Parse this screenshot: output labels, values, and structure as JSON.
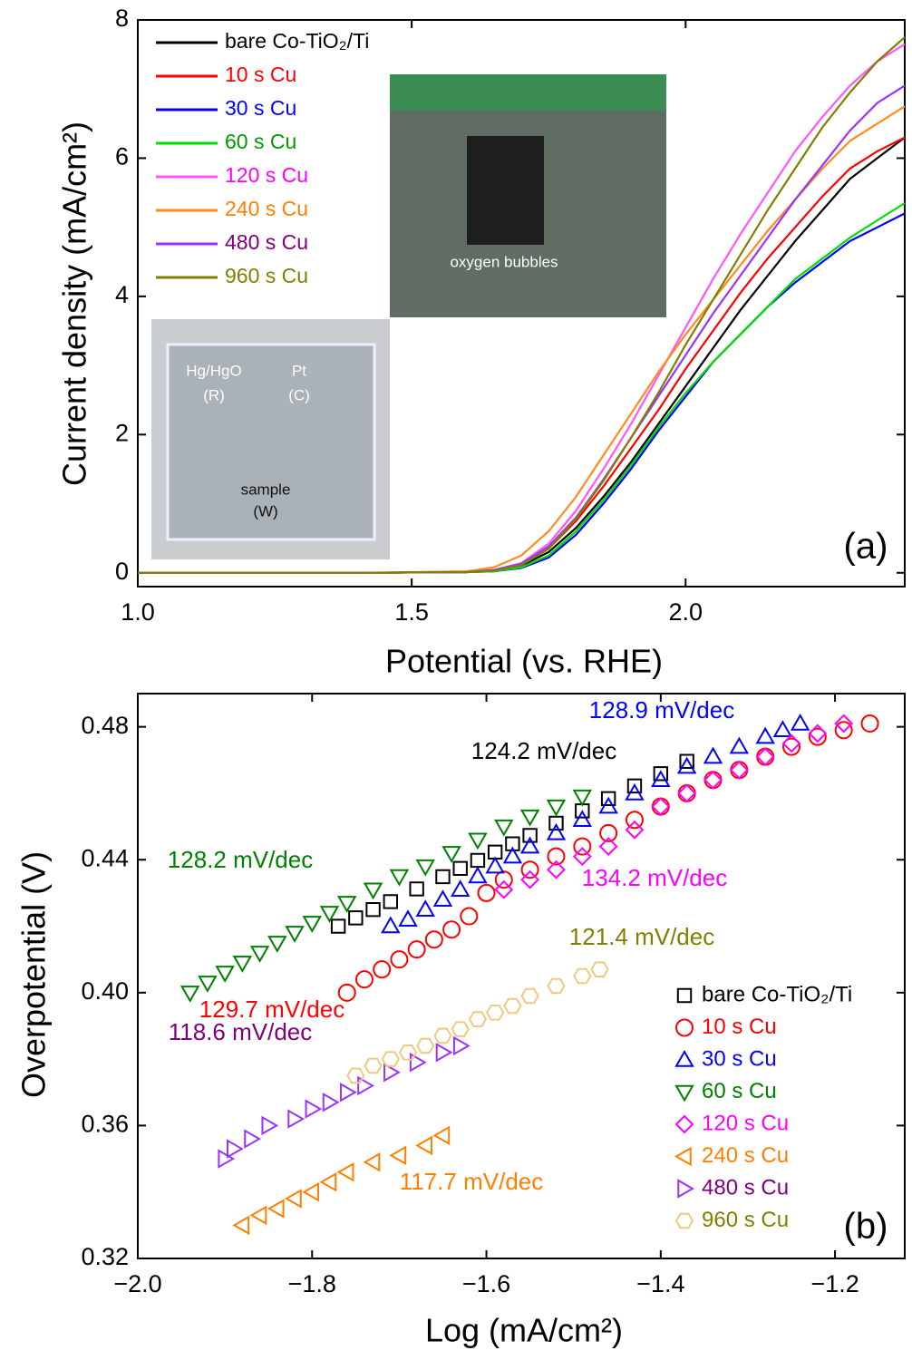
{
  "chart_data": [
    {
      "type": "line",
      "x_label": "Potential (vs. RHE)",
      "y_label": "Current density (mA/cm²)",
      "annotation": "(a)",
      "inset_labels": [
        "oxygen bubbles",
        "Hg/HgO",
        "(R)",
        "Pt",
        "(C)",
        "sample",
        "(W)"
      ],
      "xlim": [
        1.0,
        2.4
      ],
      "ylim": [
        -0.2,
        8.0
      ],
      "xticks": [
        {
          "value": 1,
          "label": "1.0"
        },
        1.5,
        {
          "value": 2,
          "label": "2.0"
        }
      ],
      "yticks": [
        0,
        2,
        4,
        6,
        8
      ],
      "legend": "upper left",
      "x": [
        1.0,
        1.2,
        1.4,
        1.6,
        1.65,
        1.7,
        1.75,
        1.8,
        1.85,
        1.9,
        1.95,
        2.0,
        2.05,
        2.1,
        2.15,
        2.2,
        2.25,
        2.3,
        2.35,
        2.4
      ],
      "series": [
        {
          "name": "bare Co-TiO₂/Ti",
          "color": "#000000",
          "label_color": "#000000",
          "values": [
            0,
            0,
            0,
            0.01,
            0.03,
            0.1,
            0.3,
            0.65,
            1.1,
            1.6,
            2.15,
            2.7,
            3.25,
            3.8,
            4.3,
            4.8,
            5.25,
            5.7,
            6.0,
            6.3
          ]
        },
        {
          "name": "10 s Cu",
          "color": "#ff0000",
          "label_color": "#ff0000",
          "values": [
            0,
            0,
            0,
            0.01,
            0.04,
            0.12,
            0.35,
            0.75,
            1.25,
            1.8,
            2.35,
            2.95,
            3.5,
            4.05,
            4.55,
            5.0,
            5.45,
            5.85,
            6.1,
            6.3
          ]
        },
        {
          "name": "30 s Cu",
          "color": "#0000ff",
          "label_color": "#0000ff",
          "values": [
            0,
            0,
            0,
            0.01,
            0.02,
            0.07,
            0.22,
            0.55,
            1.0,
            1.5,
            2.05,
            2.55,
            3.05,
            3.45,
            3.85,
            4.2,
            4.5,
            4.8,
            5.0,
            5.2
          ]
        },
        {
          "name": "60 s Cu",
          "color": "#00dd00",
          "label_color": "#009900",
          "values": [
            0,
            0,
            0,
            0.01,
            0.02,
            0.08,
            0.25,
            0.6,
            1.05,
            1.55,
            2.1,
            2.6,
            3.05,
            3.45,
            3.85,
            4.25,
            4.55,
            4.85,
            5.1,
            5.35
          ]
        },
        {
          "name": "120 s Cu",
          "color": "#ff55ff",
          "label_color": "#ff00ff",
          "values": [
            0,
            0,
            0,
            0.01,
            0.04,
            0.14,
            0.42,
            0.9,
            1.5,
            2.15,
            2.85,
            3.55,
            4.25,
            4.9,
            5.5,
            6.1,
            6.6,
            7.05,
            7.4,
            7.65
          ]
        },
        {
          "name": "240 s Cu",
          "color": "#ff8c1a",
          "label_color": "#ff8000",
          "values": [
            0,
            0,
            0,
            0.02,
            0.08,
            0.25,
            0.6,
            1.1,
            1.7,
            2.3,
            2.9,
            3.45,
            3.95,
            4.45,
            4.95,
            5.4,
            5.85,
            6.25,
            6.5,
            6.75
          ]
        },
        {
          "name": "480 s Cu",
          "color": "#9933ff",
          "label_color": "#800080",
          "values": [
            0,
            0,
            0,
            0.01,
            0.04,
            0.13,
            0.38,
            0.8,
            1.35,
            1.95,
            2.55,
            3.15,
            3.75,
            4.3,
            4.85,
            5.4,
            5.9,
            6.4,
            6.8,
            7.05
          ]
        },
        {
          "name": "960 s Cu",
          "color": "#808000",
          "label_color": "#808000",
          "values": [
            0,
            0,
            0,
            0.01,
            0.03,
            0.11,
            0.35,
            0.78,
            1.33,
            1.95,
            2.6,
            3.3,
            3.95,
            4.6,
            5.25,
            5.85,
            6.45,
            6.95,
            7.4,
            7.75
          ]
        }
      ]
    },
    {
      "type": "scatter",
      "x_label": "Log  (mA/cm²)",
      "y_label": "Overpotential (V)",
      "annotation": "(b)",
      "xlim": [
        -2.0,
        -1.12
      ],
      "ylim": [
        0.32,
        0.49
      ],
      "xticks": [
        {
          "value": -2.0,
          "label": "−2.0"
        },
        {
          "value": -1.8,
          "label": "−1.8"
        },
        {
          "value": -1.6,
          "label": "−1.6"
        },
        {
          "value": -1.4,
          "label": "−1.4"
        },
        {
          "value": -1.2,
          "label": "−1.2"
        }
      ],
      "yticks": [
        0.32,
        0.36,
        {
          "value": 0.4,
          "label": "0.40"
        },
        0.44,
        0.48
      ],
      "legend": "lower right",
      "series": [
        {
          "name": "bare Co-TiO₂/Ti",
          "marker": "square",
          "color": "#000000",
          "label_color": "#000000",
          "slope_label": "124.2 mV/dec",
          "x": [
            -1.77,
            -1.75,
            -1.73,
            -1.71,
            -1.68,
            -1.65,
            -1.63,
            -1.61,
            -1.59,
            -1.57,
            -1.55,
            -1.52,
            -1.49,
            -1.46,
            -1.43,
            -1.4,
            -1.37
          ],
          "values": [
            0.42,
            0.4225,
            0.425,
            0.4274,
            0.4312,
            0.4349,
            0.4374,
            0.4398,
            0.4423,
            0.4448,
            0.4473,
            0.451,
            0.4547,
            0.4584,
            0.4622,
            0.4659,
            0.4696
          ]
        },
        {
          "name": "10 s Cu",
          "marker": "circle",
          "color": "#ff0000",
          "label_color": "#ff0000",
          "slope_label": "129.7 mV/dec",
          "x": [
            -1.76,
            -1.74,
            -1.72,
            -1.7,
            -1.68,
            -1.66,
            -1.64,
            -1.62,
            -1.6,
            -1.58,
            -1.55,
            -1.52,
            -1.49,
            -1.46,
            -1.43,
            -1.4,
            -1.37,
            -1.34,
            -1.31,
            -1.28,
            -1.25,
            -1.22,
            -1.19,
            -1.16
          ],
          "values": [
            0.4,
            0.404,
            0.407,
            0.41,
            0.413,
            0.416,
            0.419,
            0.423,
            0.43,
            0.434,
            0.437,
            0.441,
            0.444,
            0.448,
            0.452,
            0.456,
            0.46,
            0.464,
            0.467,
            0.471,
            0.474,
            0.477,
            0.479,
            0.481
          ]
        },
        {
          "name": "30 s Cu",
          "marker": "triangle-up",
          "color": "#0000ff",
          "label_color": "#0000ff",
          "slope_label": "128.9 mV/dec",
          "x": [
            -1.71,
            -1.69,
            -1.67,
            -1.65,
            -1.63,
            -1.61,
            -1.59,
            -1.57,
            -1.55,
            -1.52,
            -1.49,
            -1.46,
            -1.43,
            -1.4,
            -1.37,
            -1.34,
            -1.31,
            -1.28,
            -1.26,
            -1.24
          ],
          "values": [
            0.42,
            0.422,
            0.425,
            0.428,
            0.431,
            0.435,
            0.438,
            0.441,
            0.444,
            0.448,
            0.452,
            0.456,
            0.46,
            0.464,
            0.468,
            0.471,
            0.474,
            0.477,
            0.479,
            0.481
          ]
        },
        {
          "name": "60 s Cu",
          "marker": "triangle-down",
          "color": "#008000",
          "label_color": "#008000",
          "slope_label": "128.2 mV/dec",
          "x": [
            -1.94,
            -1.92,
            -1.9,
            -1.88,
            -1.86,
            -1.84,
            -1.82,
            -1.8,
            -1.78,
            -1.76,
            -1.73,
            -1.7,
            -1.67,
            -1.64,
            -1.61,
            -1.58,
            -1.55,
            -1.52,
            -1.49
          ],
          "values": [
            0.4,
            0.403,
            0.406,
            0.409,
            0.412,
            0.415,
            0.418,
            0.421,
            0.424,
            0.427,
            0.431,
            0.435,
            0.438,
            0.442,
            0.446,
            0.45,
            0.453,
            0.456,
            0.459
          ]
        },
        {
          "name": "120 s Cu",
          "marker": "diamond",
          "color": "#ff00ff",
          "label_color": "#ff00ff",
          "slope_label": "134.2 mV/dec",
          "x": [
            -1.58,
            -1.55,
            -1.52,
            -1.49,
            -1.46,
            -1.43,
            -1.4,
            -1.37,
            -1.34,
            -1.31,
            -1.28,
            -1.25,
            -1.22,
            -1.19
          ],
          "values": [
            0.431,
            0.434,
            0.437,
            0.441,
            0.444,
            0.449,
            0.456,
            0.46,
            0.464,
            0.467,
            0.471,
            0.475,
            0.478,
            0.481
          ]
        },
        {
          "name": "240 s Cu",
          "marker": "triangle-left",
          "color": "#ff8000",
          "label_color": "#ff8000",
          "slope_label": "117.7 mV/dec",
          "x": [
            -1.88,
            -1.86,
            -1.84,
            -1.82,
            -1.8,
            -1.78,
            -1.76,
            -1.73,
            -1.7,
            -1.67,
            -1.65
          ],
          "values": [
            0.33,
            0.333,
            0.335,
            0.338,
            0.34,
            0.343,
            0.346,
            0.349,
            0.351,
            0.354,
            0.357
          ]
        },
        {
          "name": "480 s Cu",
          "marker": "triangle-right",
          "color": "#9933ff",
          "label_color": "#800080",
          "slope_label": "118.6 mV/dec",
          "x": [
            -1.9,
            -1.89,
            -1.87,
            -1.85,
            -1.82,
            -1.8,
            -1.78,
            -1.76,
            -1.74,
            -1.71,
            -1.68,
            -1.65,
            -1.63
          ],
          "values": [
            0.35,
            0.353,
            0.356,
            0.36,
            0.362,
            0.365,
            0.367,
            0.37,
            0.372,
            0.376,
            0.379,
            0.382,
            0.384
          ]
        },
        {
          "name": "960 s Cu",
          "marker": "hexagon",
          "color": "#eccb80",
          "label_color": "#808000",
          "slope_label": "121.4 mV/dec",
          "x": [
            -1.75,
            -1.73,
            -1.71,
            -1.69,
            -1.67,
            -1.65,
            -1.63,
            -1.61,
            -1.59,
            -1.57,
            -1.55,
            -1.52,
            -1.49,
            -1.47
          ],
          "values": [
            0.375,
            0.378,
            0.38,
            0.382,
            0.384,
            0.387,
            0.389,
            0.392,
            0.394,
            0.396,
            0.399,
            0.402,
            0.405,
            0.407
          ]
        }
      ]
    }
  ]
}
